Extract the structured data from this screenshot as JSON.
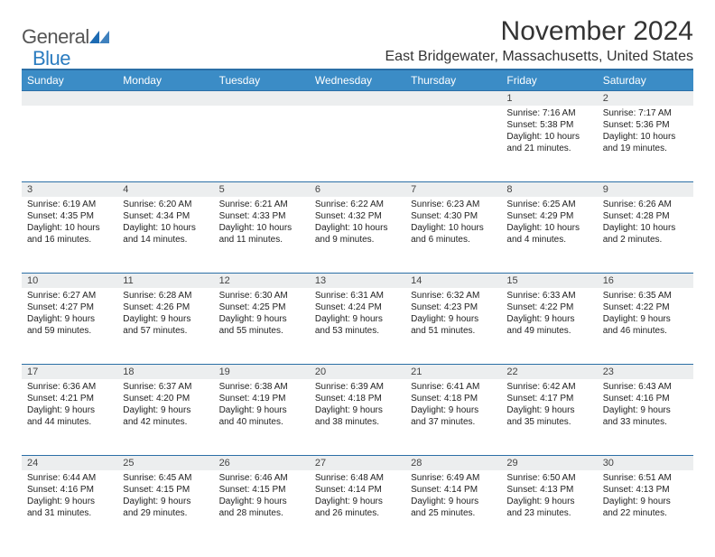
{
  "brand": {
    "general": "General",
    "blue": "Blue",
    "triangle_color": "#1d6bb3"
  },
  "title": "November 2024",
  "location": "East Bridgewater, Massachusetts, United States",
  "colors": {
    "header_bg": "#3b8cc6",
    "header_text": "#ffffff",
    "rule": "#2b6fa6",
    "daynum_bg": "#eceeef",
    "text": "#333333"
  },
  "weekdays": [
    "Sunday",
    "Monday",
    "Tuesday",
    "Wednesday",
    "Thursday",
    "Friday",
    "Saturday"
  ],
  "weeks": [
    [
      null,
      null,
      null,
      null,
      null,
      {
        "n": "1",
        "sr": "Sunrise: 7:16 AM",
        "ss": "Sunset: 5:38 PM",
        "dl": "Daylight: 10 hours and 21 minutes."
      },
      {
        "n": "2",
        "sr": "Sunrise: 7:17 AM",
        "ss": "Sunset: 5:36 PM",
        "dl": "Daylight: 10 hours and 19 minutes."
      }
    ],
    [
      {
        "n": "3",
        "sr": "Sunrise: 6:19 AM",
        "ss": "Sunset: 4:35 PM",
        "dl": "Daylight: 10 hours and 16 minutes."
      },
      {
        "n": "4",
        "sr": "Sunrise: 6:20 AM",
        "ss": "Sunset: 4:34 PM",
        "dl": "Daylight: 10 hours and 14 minutes."
      },
      {
        "n": "5",
        "sr": "Sunrise: 6:21 AM",
        "ss": "Sunset: 4:33 PM",
        "dl": "Daylight: 10 hours and 11 minutes."
      },
      {
        "n": "6",
        "sr": "Sunrise: 6:22 AM",
        "ss": "Sunset: 4:32 PM",
        "dl": "Daylight: 10 hours and 9 minutes."
      },
      {
        "n": "7",
        "sr": "Sunrise: 6:23 AM",
        "ss": "Sunset: 4:30 PM",
        "dl": "Daylight: 10 hours and 6 minutes."
      },
      {
        "n": "8",
        "sr": "Sunrise: 6:25 AM",
        "ss": "Sunset: 4:29 PM",
        "dl": "Daylight: 10 hours and 4 minutes."
      },
      {
        "n": "9",
        "sr": "Sunrise: 6:26 AM",
        "ss": "Sunset: 4:28 PM",
        "dl": "Daylight: 10 hours and 2 minutes."
      }
    ],
    [
      {
        "n": "10",
        "sr": "Sunrise: 6:27 AM",
        "ss": "Sunset: 4:27 PM",
        "dl": "Daylight: 9 hours and 59 minutes."
      },
      {
        "n": "11",
        "sr": "Sunrise: 6:28 AM",
        "ss": "Sunset: 4:26 PM",
        "dl": "Daylight: 9 hours and 57 minutes."
      },
      {
        "n": "12",
        "sr": "Sunrise: 6:30 AM",
        "ss": "Sunset: 4:25 PM",
        "dl": "Daylight: 9 hours and 55 minutes."
      },
      {
        "n": "13",
        "sr": "Sunrise: 6:31 AM",
        "ss": "Sunset: 4:24 PM",
        "dl": "Daylight: 9 hours and 53 minutes."
      },
      {
        "n": "14",
        "sr": "Sunrise: 6:32 AM",
        "ss": "Sunset: 4:23 PM",
        "dl": "Daylight: 9 hours and 51 minutes."
      },
      {
        "n": "15",
        "sr": "Sunrise: 6:33 AM",
        "ss": "Sunset: 4:22 PM",
        "dl": "Daylight: 9 hours and 49 minutes."
      },
      {
        "n": "16",
        "sr": "Sunrise: 6:35 AM",
        "ss": "Sunset: 4:22 PM",
        "dl": "Daylight: 9 hours and 46 minutes."
      }
    ],
    [
      {
        "n": "17",
        "sr": "Sunrise: 6:36 AM",
        "ss": "Sunset: 4:21 PM",
        "dl": "Daylight: 9 hours and 44 minutes."
      },
      {
        "n": "18",
        "sr": "Sunrise: 6:37 AM",
        "ss": "Sunset: 4:20 PM",
        "dl": "Daylight: 9 hours and 42 minutes."
      },
      {
        "n": "19",
        "sr": "Sunrise: 6:38 AM",
        "ss": "Sunset: 4:19 PM",
        "dl": "Daylight: 9 hours and 40 minutes."
      },
      {
        "n": "20",
        "sr": "Sunrise: 6:39 AM",
        "ss": "Sunset: 4:18 PM",
        "dl": "Daylight: 9 hours and 38 minutes."
      },
      {
        "n": "21",
        "sr": "Sunrise: 6:41 AM",
        "ss": "Sunset: 4:18 PM",
        "dl": "Daylight: 9 hours and 37 minutes."
      },
      {
        "n": "22",
        "sr": "Sunrise: 6:42 AM",
        "ss": "Sunset: 4:17 PM",
        "dl": "Daylight: 9 hours and 35 minutes."
      },
      {
        "n": "23",
        "sr": "Sunrise: 6:43 AM",
        "ss": "Sunset: 4:16 PM",
        "dl": "Daylight: 9 hours and 33 minutes."
      }
    ],
    [
      {
        "n": "24",
        "sr": "Sunrise: 6:44 AM",
        "ss": "Sunset: 4:16 PM",
        "dl": "Daylight: 9 hours and 31 minutes."
      },
      {
        "n": "25",
        "sr": "Sunrise: 6:45 AM",
        "ss": "Sunset: 4:15 PM",
        "dl": "Daylight: 9 hours and 29 minutes."
      },
      {
        "n": "26",
        "sr": "Sunrise: 6:46 AM",
        "ss": "Sunset: 4:15 PM",
        "dl": "Daylight: 9 hours and 28 minutes."
      },
      {
        "n": "27",
        "sr": "Sunrise: 6:48 AM",
        "ss": "Sunset: 4:14 PM",
        "dl": "Daylight: 9 hours and 26 minutes."
      },
      {
        "n": "28",
        "sr": "Sunrise: 6:49 AM",
        "ss": "Sunset: 4:14 PM",
        "dl": "Daylight: 9 hours and 25 minutes."
      },
      {
        "n": "29",
        "sr": "Sunrise: 6:50 AM",
        "ss": "Sunset: 4:13 PM",
        "dl": "Daylight: 9 hours and 23 minutes."
      },
      {
        "n": "30",
        "sr": "Sunrise: 6:51 AM",
        "ss": "Sunset: 4:13 PM",
        "dl": "Daylight: 9 hours and 22 minutes."
      }
    ]
  ]
}
